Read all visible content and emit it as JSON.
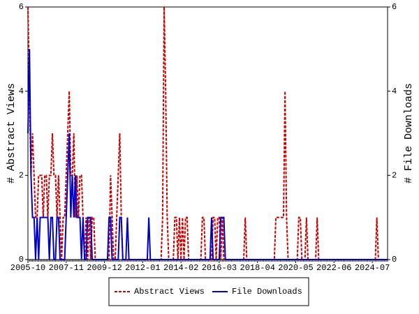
{
  "chart_data": {
    "type": "line",
    "y_label": "# Abstract Views",
    "y2_label": "# File Downloads",
    "ylim": [
      0,
      6
    ],
    "yticks": [
      0,
      2,
      4,
      6
    ],
    "y2lim": [
      0,
      6
    ],
    "y2ticks": [
      0,
      2,
      4,
      6
    ],
    "legend": "bottom",
    "categories": [
      "2005-10",
      null,
      null,
      null,
      null,
      null,
      null,
      null,
      null,
      null,
      null,
      null,
      null,
      null,
      null,
      null,
      null,
      null,
      null,
      null,
      null,
      null,
      null,
      null,
      null,
      "2007-11",
      null,
      null,
      null,
      null,
      null,
      null,
      null,
      null,
      null,
      null,
      null,
      null,
      null,
      null,
      null,
      null,
      null,
      null,
      null,
      null,
      null,
      null,
      null,
      null,
      "2009-12",
      null,
      null,
      null,
      null,
      null,
      null,
      null,
      null,
      null,
      null,
      null,
      null,
      null,
      null,
      null,
      null,
      null,
      null,
      null,
      null,
      null,
      null,
      null,
      null,
      "2012-01",
      null,
      null,
      null,
      null,
      null,
      null,
      null,
      null,
      null,
      null,
      null,
      null,
      null,
      null,
      null,
      null,
      null,
      null,
      null,
      null,
      null,
      null,
      null,
      null,
      "2014-02",
      null,
      null,
      null,
      null,
      null,
      null,
      null,
      null,
      null,
      null,
      null,
      null,
      null,
      null,
      null,
      null,
      null,
      null,
      null,
      null,
      null,
      null,
      null,
      null,
      "2016-03",
      null,
      null,
      null,
      null,
      null,
      null,
      null,
      null,
      null,
      null,
      null,
      null,
      null,
      null,
      null,
      null,
      null,
      null,
      null,
      null,
      null,
      null,
      null,
      null,
      "2018-04",
      null,
      null,
      null,
      null,
      null,
      null,
      null,
      null,
      null,
      null,
      null,
      null,
      null,
      null,
      null,
      null,
      null,
      null,
      null,
      null,
      null,
      null,
      null,
      null,
      "2020-05",
      null,
      null,
      null,
      null,
      null,
      null,
      null,
      null,
      null,
      null,
      null,
      null,
      null,
      null,
      null,
      null,
      null,
      null,
      null,
      null,
      null,
      null,
      null,
      null,
      "2022-06",
      null,
      null,
      null,
      null,
      null,
      null,
      null,
      null,
      null,
      null,
      null,
      null,
      null,
      null,
      null,
      null,
      null,
      null,
      null,
      null,
      null,
      null,
      null,
      null,
      "2024-07",
      null,
      null,
      null,
      null,
      null,
      null,
      null,
      null,
      null,
      null
    ],
    "series": [
      {
        "name": "Abstract Views",
        "color": "#cc0000",
        "dash": true,
        "values": [
          6,
          4,
          2,
          3,
          2,
          1,
          1,
          2,
          2,
          2,
          1,
          2,
          2,
          1,
          2,
          2,
          3,
          2,
          2,
          1,
          2,
          1,
          0,
          1,
          1,
          2,
          3,
          4,
          2,
          2,
          3,
          1,
          2,
          1,
          2,
          2,
          1,
          0,
          1,
          0,
          1,
          0,
          1,
          1,
          0,
          0,
          0,
          0,
          0,
          0,
          0,
          0,
          0,
          0,
          2,
          1,
          0,
          0,
          1,
          2,
          3,
          1,
          0,
          0,
          0,
          0,
          0,
          0,
          0,
          0,
          0,
          0,
          0,
          0,
          0,
          0,
          0,
          0,
          0,
          0,
          0,
          0,
          0,
          0,
          0,
          0,
          0,
          0,
          1,
          6,
          4,
          1,
          0,
          0,
          0,
          0,
          1,
          1,
          0,
          1,
          0,
          1,
          0,
          1,
          1,
          0,
          0,
          0,
          0,
          0,
          0,
          0,
          0,
          0,
          1,
          1,
          0,
          0,
          0,
          0,
          0,
          1,
          1,
          0,
          1,
          1,
          0,
          1,
          0,
          0,
          0,
          0,
          0,
          0,
          0,
          0,
          0,
          0,
          0,
          0,
          0,
          0,
          1,
          0,
          0,
          0,
          0,
          0,
          0,
          0,
          0,
          0,
          0,
          0,
          0,
          0,
          0,
          0,
          0,
          0,
          0,
          0,
          1,
          1,
          1,
          1,
          1,
          1,
          4,
          1,
          0,
          0,
          0,
          0,
          0,
          0,
          0,
          1,
          1,
          0,
          0,
          0,
          1,
          0,
          0,
          0,
          0,
          0,
          0,
          1,
          0,
          0,
          0,
          0,
          0,
          0,
          0,
          0,
          0,
          0,
          0,
          0,
          0,
          0,
          0,
          0,
          0,
          0,
          0,
          0,
          0,
          0,
          0,
          0,
          0,
          0,
          0,
          0,
          0,
          0,
          0,
          0,
          0,
          0,
          0,
          0,
          0,
          0,
          1,
          0,
          0,
          0,
          0,
          0,
          0,
          0
        ]
      },
      {
        "name": "File Downloads",
        "color": "#0000cc",
        "dash": false,
        "axis": "y2",
        "values": [
          3,
          5,
          2,
          1,
          1,
          0,
          1,
          0,
          1,
          1,
          1,
          1,
          1,
          1,
          0,
          1,
          1,
          0,
          0,
          1,
          1,
          0,
          0,
          0,
          0,
          1,
          2,
          3,
          1,
          2,
          1,
          2,
          1,
          1,
          1,
          0,
          1,
          0,
          0,
          1,
          1,
          1,
          0,
          0,
          0,
          0,
          0,
          0,
          0,
          0,
          0,
          0,
          0,
          1,
          1,
          0,
          0,
          0,
          0,
          0,
          1,
          1,
          0,
          0,
          0,
          1,
          0,
          0,
          0,
          0,
          0,
          0,
          0,
          0,
          0,
          0,
          0,
          0,
          0,
          1,
          0,
          0,
          0,
          0,
          0,
          0,
          0,
          0,
          0,
          0,
          0,
          0,
          0,
          0,
          0,
          0,
          0,
          0,
          0,
          0,
          0,
          0,
          0,
          0,
          0,
          0,
          0,
          0,
          0,
          0,
          0,
          0,
          0,
          0,
          0,
          0,
          0,
          0,
          0,
          0,
          1,
          0,
          0,
          0,
          0,
          0,
          1,
          1,
          1,
          0,
          0,
          0,
          0,
          0,
          0,
          0,
          0,
          0,
          0,
          0,
          0,
          0,
          0,
          0,
          0,
          0,
          0,
          0,
          0,
          0,
          0,
          0,
          0,
          0,
          0,
          0,
          0,
          0,
          0,
          0,
          0,
          0,
          0,
          0,
          0,
          0,
          0,
          0,
          0,
          0,
          0,
          0,
          0,
          0,
          0,
          0,
          0,
          0,
          0,
          0,
          0,
          0,
          0,
          0,
          0,
          0,
          0,
          0,
          0,
          0,
          0,
          0,
          0,
          0,
          0,
          0,
          0,
          0,
          0,
          0,
          0,
          0,
          0,
          0,
          0,
          0,
          0,
          0,
          0,
          0,
          0,
          0,
          0,
          0,
          0,
          0,
          0,
          0,
          0,
          0,
          0,
          0,
          0,
          0,
          0,
          0,
          0,
          0,
          0,
          0,
          0,
          0,
          0,
          0,
          0,
          0
        ]
      }
    ]
  }
}
